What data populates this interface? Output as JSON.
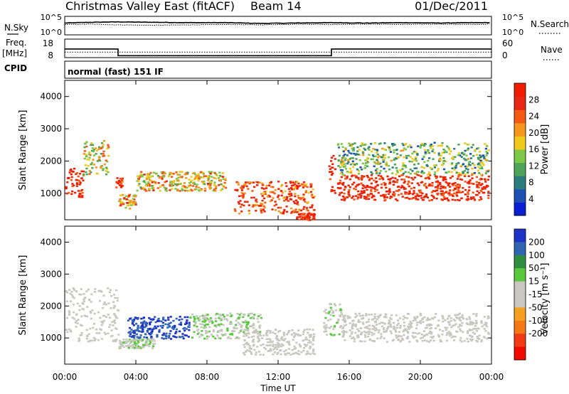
{
  "header": {
    "station_title": "Christmas Valley East (fitACF)",
    "beam": "Beam 14",
    "date": "01/Dec/2011"
  },
  "noise_panel": {
    "left_label": "N.Sky",
    "left_ticks": [
      "10^5",
      "10^0"
    ],
    "right_ticks": [
      "10^5",
      "10^0"
    ],
    "right_label": "N.Search"
  },
  "freq_panel": {
    "left_label": "Freq.",
    "left_unit": "[MHz]",
    "left_ticks": [
      "18",
      "8"
    ],
    "right_ticks": [
      "60",
      "0"
    ],
    "right_label": "Nave"
  },
  "cpid": {
    "label": "CPID",
    "value": "normal (fast) 151 IF"
  },
  "colors": {
    "power_scale": [
      "#0a1ed2",
      "#1e50b4",
      "#2e7d7d",
      "#4ea55a",
      "#7dc846",
      "#f0c81e",
      "#f5961e",
      "#f55a14",
      "#e62814",
      "#f01e00"
    ],
    "velocity_scale": [
      "#1e32c8",
      "#3264b4",
      "#2f8c41",
      "#5ac83c",
      "#c8c8c0",
      "#c8c8c0",
      "#f5a01e",
      "#f57814",
      "#f03c14",
      "#f00a00"
    ]
  },
  "chart_data": [
    {
      "type": "line",
      "title": "N.Sky / N.Search",
      "x": [
        "00:00",
        "01:30",
        "03:00",
        "05:00",
        "07:00",
        "09:00",
        "11:00",
        "13:00",
        "15:00",
        "17:00",
        "19:00",
        "21:00",
        "23:00",
        "24:00"
      ],
      "series": [
        {
          "name": "N.Sky",
          "values": [
            3.2,
            3.4,
            3.5,
            3.4,
            3.3,
            3.3,
            3.1,
            3.2,
            3.3,
            3.2,
            3.3,
            3.2,
            3.3,
            3.3
          ]
        },
        {
          "name": "N.Search",
          "values": [
            2.8,
            2.9,
            2.7,
            2.6,
            2.7,
            2.8,
            2.7,
            2.9,
            2.8,
            2.9,
            2.8,
            2.9,
            2.8,
            2.9
          ]
        }
      ]
    },
    {
      "type": "line",
      "title": "Freq. / Nave",
      "ylabel": "Freq. [MHz]",
      "x": [
        "00:00",
        "03:00",
        "03:00",
        "15:00",
        "15:00",
        "24:00"
      ],
      "series": [
        {
          "name": "Freq.",
          "values": [
            13.8,
            13.8,
            10.2,
            10.2,
            13.8,
            13.8
          ]
        },
        {
          "name": "Nave",
          "values": [
            18,
            18,
            18,
            18,
            18,
            18
          ]
        }
      ]
    },
    {
      "type": "heatmap",
      "ylabel": "Slant Range [km]",
      "yticks": [
        "1000",
        "2000",
        "3000",
        "4000"
      ],
      "ylim": [
        180,
        4500
      ],
      "colorbar": {
        "label": "Power [dB]",
        "ticks": [
          "4",
          "8",
          "12",
          "16",
          "20",
          "24",
          "28"
        ],
        "range": [
          0,
          30
        ]
      },
      "bands": [
        {
          "t": [
            0.0,
            1.0
          ],
          "range": [
            900,
            1800
          ],
          "value": 28
        },
        {
          "t": [
            1.0,
            2.5
          ],
          "range": [
            1600,
            2700
          ],
          "value": 16
        },
        {
          "t": [
            2.8,
            3.2
          ],
          "range": [
            1200,
            1500
          ],
          "value": 27
        },
        {
          "t": [
            3.0,
            4.0
          ],
          "range": [
            550,
            1000
          ],
          "value": 20
        },
        {
          "t": [
            4.0,
            9.0
          ],
          "range": [
            1100,
            1700
          ],
          "value": 18
        },
        {
          "t": [
            9.5,
            14.0
          ],
          "range": [
            400,
            1400
          ],
          "value": 24
        },
        {
          "t": [
            13.0,
            14.0
          ],
          "range": [
            200,
            400
          ],
          "value": 28
        },
        {
          "t": [
            14.8,
            15.2
          ],
          "range": [
            1000,
            2200
          ],
          "value": 28
        },
        {
          "t": [
            15.3,
            23.8
          ],
          "range": [
            800,
            1600
          ],
          "value": 28
        },
        {
          "t": [
            15.3,
            23.8
          ],
          "range": [
            1600,
            2600
          ],
          "value": 12
        }
      ]
    },
    {
      "type": "heatmap",
      "xlabel": "Time UT",
      "xticks": [
        "00:00",
        "04:00",
        "08:00",
        "12:00",
        "16:00",
        "20:00",
        "00:00"
      ],
      "ylabel": "Slant Range [km]",
      "yticks": [
        "1000",
        "2000",
        "3000",
        "4000"
      ],
      "ylim": [
        180,
        4500
      ],
      "colorbar": {
        "label": "Velocity [m s⁻¹]",
        "ticks": [
          "200",
          "100",
          "50",
          "15",
          "-15",
          "-50",
          "-100",
          "-200"
        ],
        "range": [
          -250,
          250
        ]
      },
      "bands": [
        {
          "t": [
            0.0,
            3.0
          ],
          "range": [
            900,
            2600
          ],
          "value": 0
        },
        {
          "t": [
            3.5,
            7.0
          ],
          "range": [
            1000,
            1700
          ],
          "value": 200
        },
        {
          "t": [
            3.0,
            5.0
          ],
          "range": [
            700,
            1000
          ],
          "value": 40
        },
        {
          "t": [
            7.0,
            11.0
          ],
          "range": [
            1000,
            1800
          ],
          "value": 40
        },
        {
          "t": [
            10.0,
            14.0
          ],
          "range": [
            500,
            1300
          ],
          "value": 0
        },
        {
          "t": [
            14.5,
            15.5
          ],
          "range": [
            1100,
            2100
          ],
          "value": 40
        },
        {
          "t": [
            15.5,
            23.8
          ],
          "range": [
            900,
            1800
          ],
          "value": 0
        }
      ]
    }
  ]
}
